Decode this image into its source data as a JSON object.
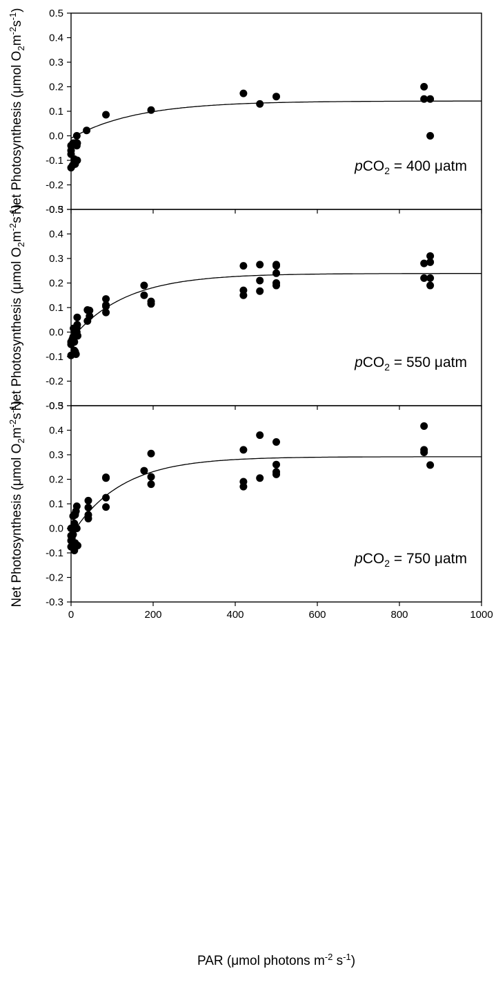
{
  "chart_data": [
    {
      "type": "scatter",
      "panel": "top",
      "xlim": [
        0,
        1000
      ],
      "ylim": [
        -0.3,
        0.5
      ],
      "yticks": [
        "0.5",
        "0.4",
        "0.3",
        "0.2",
        "0.1",
        "0.0",
        "-0.1",
        "-0.2",
        "-0.3"
      ],
      "xticks": [],
      "ylabel": {
        "prefix": "Net Photosynthesis (",
        "mu": "μ",
        "mid": "mol O",
        "sub": "2",
        "m": "m",
        "sup1": "-2",
        "s": "s",
        "sup2": "-1",
        "close": ")"
      },
      "annotation": {
        "p": "p",
        "co": "CO",
        "sub": "2",
        "rest": " = 400 ",
        "mu": "μ",
        "unit": "atm"
      },
      "fit": {
        "pmax": 0.142,
        "ik": 160,
        "rd": -0.01
      },
      "points": [
        [
          0,
          -0.13
        ],
        [
          0,
          -0.075
        ],
        [
          0,
          -0.06
        ],
        [
          0,
          -0.04
        ],
        [
          4,
          -0.12
        ],
        [
          5,
          -0.03
        ],
        [
          8,
          -0.095
        ],
        [
          10,
          -0.115
        ],
        [
          10,
          -0.03
        ],
        [
          14,
          -0.04
        ],
        [
          14,
          0.0
        ],
        [
          15,
          -0.1
        ],
        [
          15,
          -0.03
        ],
        [
          38,
          0.022
        ],
        [
          85,
          0.086
        ],
        [
          195,
          0.105
        ],
        [
          420,
          0.173
        ],
        [
          460,
          0.13
        ],
        [
          500,
          0.16
        ],
        [
          860,
          0.2
        ],
        [
          860,
          0.15
        ],
        [
          875,
          0.15
        ],
        [
          875,
          0.0
        ]
      ]
    },
    {
      "type": "scatter",
      "panel": "middle",
      "xlim": [
        0,
        1000
      ],
      "ylim": [
        -0.3,
        0.5
      ],
      "yticks": [
        "0.5",
        "0.4",
        "0.3",
        "0.2",
        "0.1",
        "0.0",
        "-0.1",
        "-0.2",
        "-0.3"
      ],
      "xticks": [],
      "ylabel": {
        "prefix": "Net Photosynthesis (",
        "mu": "μ",
        "mid": "mol O",
        "sub": "2",
        "m": "m",
        "sup1": "-2",
        "s": "s",
        "sup2": "-1",
        "close": ")"
      },
      "annotation": {
        "p": "p",
        "co": "CO",
        "sub": "2",
        "rest": " = 550 ",
        "mu": "μ",
        "unit": "atm"
      },
      "fit": {
        "pmax": 0.239,
        "ik": 130,
        "rd": -0.03
      },
      "points": [
        [
          0,
          -0.095
        ],
        [
          0,
          -0.05
        ],
        [
          0,
          -0.04
        ],
        [
          3,
          -0.03
        ],
        [
          5,
          -0.02
        ],
        [
          6,
          -0.02
        ],
        [
          6,
          0.015
        ],
        [
          8,
          -0.04
        ],
        [
          8,
          -0.075
        ],
        [
          10,
          -0.08
        ],
        [
          10,
          0.0
        ],
        [
          12,
          -0.01
        ],
        [
          12,
          -0.09
        ],
        [
          14,
          0.0
        ],
        [
          14,
          0.02
        ],
        [
          15,
          0.03
        ],
        [
          15,
          0.06
        ],
        [
          16,
          -0.015
        ],
        [
          40,
          0.045
        ],
        [
          40,
          0.09
        ],
        [
          45,
          0.065
        ],
        [
          45,
          0.088
        ],
        [
          85,
          0.135
        ],
        [
          85,
          0.11
        ],
        [
          85,
          0.105
        ],
        [
          85,
          0.08
        ],
        [
          178,
          0.19
        ],
        [
          178,
          0.15
        ],
        [
          195,
          0.125
        ],
        [
          195,
          0.115
        ],
        [
          420,
          0.27
        ],
        [
          420,
          0.17
        ],
        [
          420,
          0.15
        ],
        [
          460,
          0.275
        ],
        [
          460,
          0.21
        ],
        [
          460,
          0.167
        ],
        [
          500,
          0.275
        ],
        [
          500,
          0.27
        ],
        [
          500,
          0.24
        ],
        [
          500,
          0.2
        ],
        [
          500,
          0.19
        ],
        [
          860,
          0.28
        ],
        [
          860,
          0.22
        ],
        [
          875,
          0.31
        ],
        [
          875,
          0.285
        ],
        [
          875,
          0.22
        ],
        [
          875,
          0.19
        ]
      ]
    },
    {
      "type": "scatter",
      "panel": "bottom",
      "xlim": [
        0,
        1000
      ],
      "ylim": [
        -0.3,
        0.5
      ],
      "yticks": [
        "0.5",
        "0.4",
        "0.3",
        "0.2",
        "0.1",
        "0.0",
        "-0.1",
        "-0.2",
        "-0.3"
      ],
      "xticks": [
        "0",
        "200",
        "400",
        "600",
        "800",
        "1000"
      ],
      "ylabel": {
        "prefix": "Net Photosynthesis (",
        "mu": "μ",
        "mid": "mol O",
        "sub": "2",
        "m": "m",
        "sup1": "-2",
        "s": "s",
        "sup2": "-1",
        "close": ")"
      },
      "xlabel": {
        "prefix": "PAR (",
        "mu": "μ",
        "mid": "mol photons m",
        "sup1": "-2",
        "s": " s",
        "sup2": "-1",
        "close": ")"
      },
      "annotation": {
        "p": "p",
        "co": "CO",
        "sub": "2",
        "rest": " = 750 ",
        "mu": "μ",
        "unit": "atm"
      },
      "fit": {
        "pmax": 0.292,
        "ik": 120,
        "rd": -0.03
      },
      "points": [
        [
          0,
          -0.075
        ],
        [
          0,
          -0.05
        ],
        [
          0,
          -0.03
        ],
        [
          0,
          0.0
        ],
        [
          2,
          -0.04
        ],
        [
          5,
          0.0
        ],
        [
          5,
          -0.025
        ],
        [
          5,
          0.05
        ],
        [
          8,
          -0.09
        ],
        [
          8,
          0.02
        ],
        [
          10,
          -0.06
        ],
        [
          10,
          0.055
        ],
        [
          10,
          0.06
        ],
        [
          12,
          0.07
        ],
        [
          14,
          0.09
        ],
        [
          14,
          0.0
        ],
        [
          16,
          -0.07
        ],
        [
          42,
          0.113
        ],
        [
          42,
          0.085
        ],
        [
          42,
          0.055
        ],
        [
          42,
          0.04
        ],
        [
          85,
          0.208
        ],
        [
          85,
          0.205
        ],
        [
          85,
          0.125
        ],
        [
          85,
          0.087
        ],
        [
          178,
          0.235
        ],
        [
          195,
          0.305
        ],
        [
          195,
          0.21
        ],
        [
          195,
          0.18
        ],
        [
          420,
          0.32
        ],
        [
          420,
          0.19
        ],
        [
          420,
          0.17
        ],
        [
          460,
          0.38
        ],
        [
          460,
          0.205
        ],
        [
          500,
          0.352
        ],
        [
          500,
          0.26
        ],
        [
          500,
          0.23
        ],
        [
          500,
          0.22
        ],
        [
          860,
          0.417
        ],
        [
          860,
          0.32
        ],
        [
          860,
          0.31
        ],
        [
          875,
          0.258
        ]
      ]
    }
  ]
}
